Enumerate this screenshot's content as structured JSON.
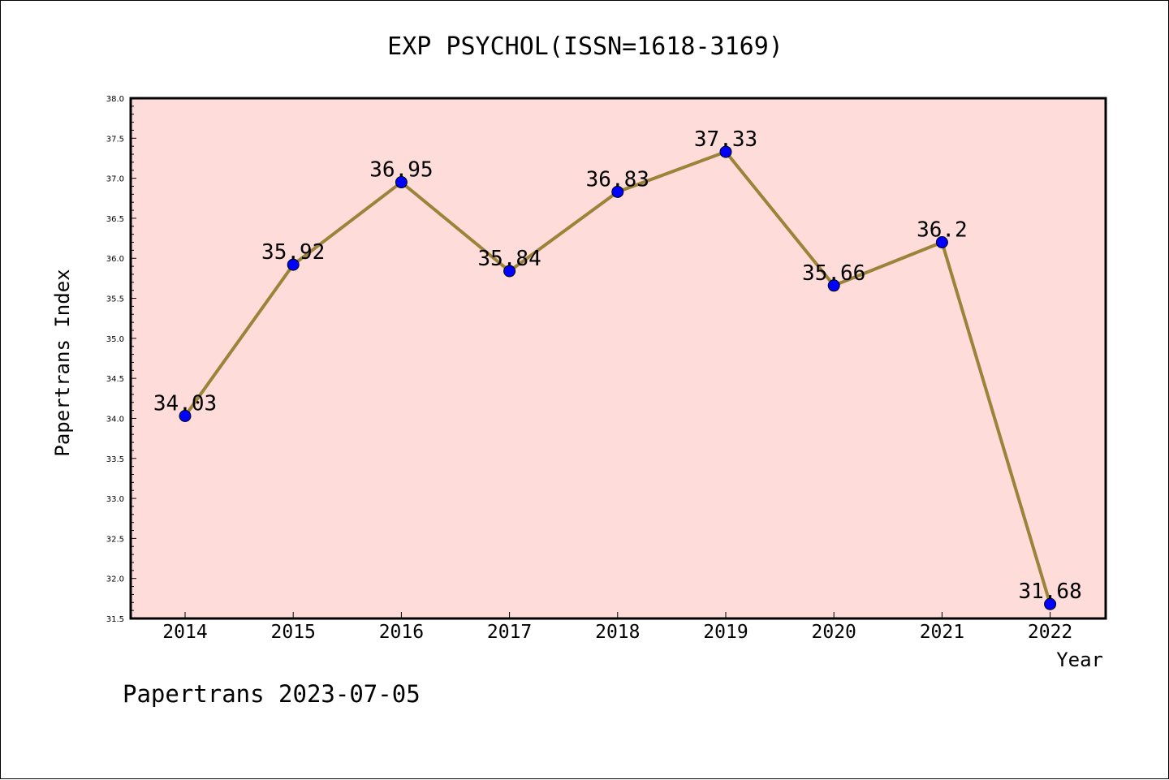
{
  "chart_data": {
    "type": "line",
    "title": "EXP PSYCHOL(ISSN=1618-3169)",
    "xlabel": "Year",
    "ylabel": "Papertrans Index",
    "categories": [
      "2014",
      "2015",
      "2016",
      "2017",
      "2018",
      "2019",
      "2020",
      "2021",
      "2022"
    ],
    "values": [
      34.03,
      35.92,
      36.95,
      35.84,
      36.83,
      37.33,
      35.66,
      36.2,
      31.68
    ],
    "value_labels": [
      "34.03",
      "35.92",
      "36.95",
      "35.84",
      "36.83",
      "37.33",
      "35.66",
      "36.2",
      "31.68"
    ],
    "ylim": [
      31.5,
      38.0
    ],
    "yticks": [
      "31.5",
      "32.0",
      "32.5",
      "33.0",
      "33.5",
      "34.0",
      "34.5",
      "35.0",
      "35.5",
      "36.0",
      "36.5",
      "37.0",
      "37.5",
      "38.0"
    ],
    "grid": false,
    "legend": "none",
    "colors": {
      "plot_background": "#fddcda",
      "line": "#9b8439",
      "marker": "#0000ff"
    }
  },
  "footer": "Papertrans 2023-07-05"
}
